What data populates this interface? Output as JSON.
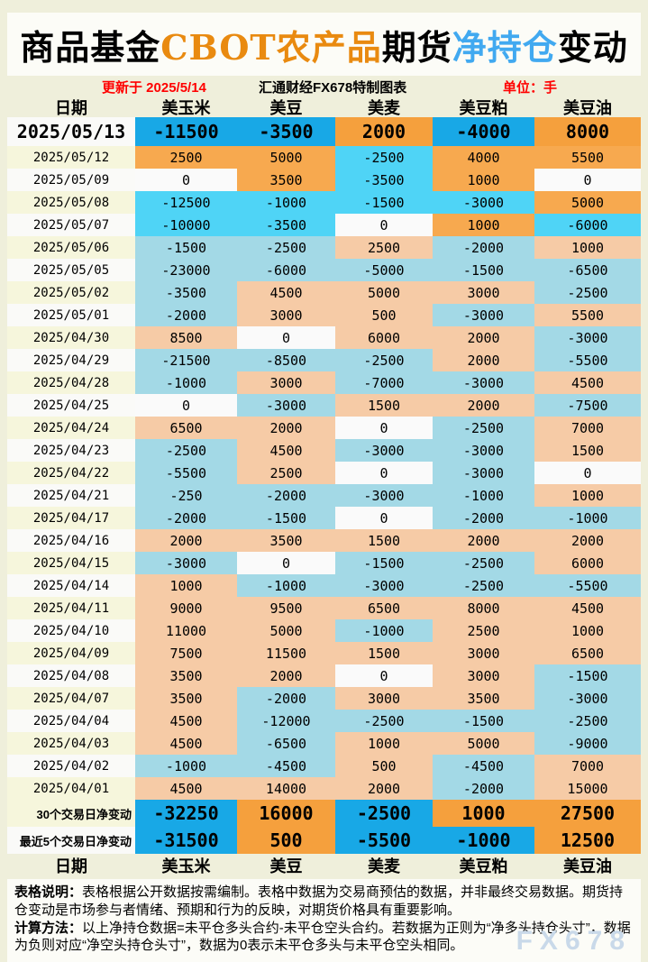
{
  "title": {
    "part1": "商品基金",
    "part2": "CBOT农产品",
    "part3": "期货",
    "part4": "净持仓",
    "part5": "变动"
  },
  "meta": {
    "updated": "更新于 2025/5/14",
    "source": "汇通财经FX678特制图表",
    "unit": "单位：手"
  },
  "chart_data": {
    "type": "table",
    "title": "商品基金CBOT农产品期货净持仓变动",
    "unit": "手",
    "columns": [
      "日期",
      "美玉米",
      "美豆",
      "美麦",
      "美豆粕",
      "美豆油"
    ],
    "rows": [
      {
        "date": "2025/05/13",
        "values": [
          -11500,
          -3500,
          2000,
          -4000,
          8000
        ]
      },
      {
        "date": "2025/05/12",
        "values": [
          2500,
          5000,
          -2500,
          4000,
          5500
        ]
      },
      {
        "date": "2025/05/09",
        "values": [
          0,
          3500,
          -3500,
          1000,
          0
        ]
      },
      {
        "date": "2025/05/08",
        "values": [
          -12500,
          -1000,
          -1500,
          -3000,
          5000
        ]
      },
      {
        "date": "2025/05/07",
        "values": [
          -10000,
          -3500,
          0,
          1000,
          -6000
        ]
      },
      {
        "date": "2025/05/06",
        "values": [
          -1500,
          -2500,
          2500,
          -2000,
          1000
        ]
      },
      {
        "date": "2025/05/05",
        "values": [
          -23000,
          -6000,
          -5000,
          -1500,
          -6500
        ]
      },
      {
        "date": "2025/05/02",
        "values": [
          -3500,
          4500,
          5000,
          3000,
          -2500
        ]
      },
      {
        "date": "2025/05/01",
        "values": [
          -2000,
          3000,
          500,
          -3000,
          5500
        ]
      },
      {
        "date": "2025/04/30",
        "values": [
          8500,
          0,
          6000,
          2000,
          -3000
        ]
      },
      {
        "date": "2025/04/29",
        "values": [
          -21500,
          -8500,
          -2500,
          2000,
          -5500
        ]
      },
      {
        "date": "2025/04/28",
        "values": [
          -1000,
          3000,
          -7000,
          -3000,
          4500
        ]
      },
      {
        "date": "2025/04/25",
        "values": [
          0,
          -3000,
          1500,
          2000,
          -7500
        ]
      },
      {
        "date": "2025/04/24",
        "values": [
          6500,
          2000,
          0,
          -2500,
          7000
        ]
      },
      {
        "date": "2025/04/23",
        "values": [
          -2500,
          4500,
          -3000,
          -3000,
          1500
        ]
      },
      {
        "date": "2025/04/22",
        "values": [
          -5500,
          2500,
          0,
          -3000,
          0
        ]
      },
      {
        "date": "2025/04/21",
        "values": [
          -250,
          -2000,
          -3000,
          -1000,
          1000
        ]
      },
      {
        "date": "2025/04/17",
        "values": [
          -2000,
          -1500,
          0,
          -2000,
          -1000
        ]
      },
      {
        "date": "2025/04/16",
        "values": [
          2000,
          3500,
          1500,
          2000,
          2000
        ]
      },
      {
        "date": "2025/04/15",
        "values": [
          -3000,
          0,
          -1500,
          -2500,
          6000
        ]
      },
      {
        "date": "2025/04/14",
        "values": [
          1000,
          -1000,
          -3000,
          -2500,
          -5500
        ]
      },
      {
        "date": "2025/04/11",
        "values": [
          9000,
          9500,
          6500,
          8000,
          4500
        ]
      },
      {
        "date": "2025/04/10",
        "values": [
          11000,
          5000,
          -1000,
          2500,
          1000
        ]
      },
      {
        "date": "2025/04/09",
        "values": [
          7500,
          11500,
          1500,
          3000,
          6500
        ]
      },
      {
        "date": "2025/04/08",
        "values": [
          3500,
          2000,
          0,
          3000,
          -1500
        ]
      },
      {
        "date": "2025/04/07",
        "values": [
          3500,
          -2000,
          3000,
          3500,
          -3000
        ]
      },
      {
        "date": "2025/04/04",
        "values": [
          4500,
          -12000,
          -2500,
          -1500,
          -2500
        ]
      },
      {
        "date": "2025/04/03",
        "values": [
          4500,
          -6500,
          1000,
          5000,
          -9000
        ]
      },
      {
        "date": "2025/04/02",
        "values": [
          -1000,
          -4500,
          500,
          -4500,
          7000
        ]
      },
      {
        "date": "2025/04/01",
        "values": [
          4500,
          14000,
          2000,
          -2000,
          15000
        ]
      }
    ],
    "summary": [
      {
        "label": "30个交易日净变动",
        "values": [
          -32250,
          16000,
          -2500,
          1000,
          27500
        ]
      },
      {
        "label": "最近5个交易日净变动",
        "values": [
          -31500,
          500,
          -5500,
          -1000,
          12500
        ]
      }
    ],
    "color_rule": "正值为橙色(净多头增加)，负值为蓝色(净空头增加)，0为白色；最近5个交易日与合计行为深色"
  },
  "notes": [
    {
      "label": "表格说明：",
      "text": "表格根据公开数据按需编制。表格中数据为交易商预估的数据，并非最终交易数据。期货持仓变动是市场参与者情绪、预期和行为的反映，对期货价格具有重要影响。"
    },
    {
      "label": "计算方法：",
      "text": "以上净持仓数据=未平仓多头合约-未平仓空头合约。若数据为正则为“净多头持仓头寸”，数据为负则对应“净空头持仓头寸”，数据为0表示未平仓多头与未平仓空头相同。"
    }
  ],
  "watermark": "FX678",
  "colors": {
    "page_bg": "#EFEFDB",
    "panel_bg": "#FCFCF7",
    "positive_strong": "#F5A03D",
    "positive_mid": "#F7A94F",
    "positive_pale": "#F6CBA6",
    "negative_strong": "#18A8E6",
    "negative_mid": "#4FD4F6",
    "negative_pale": "#A3D9E6",
    "zero_cell": "#FAFAFA",
    "title_orange": "#E98A10",
    "title_blue": "#41A9F0",
    "accent_red": "#FF0000",
    "watermark": "#C9D9E9"
  }
}
